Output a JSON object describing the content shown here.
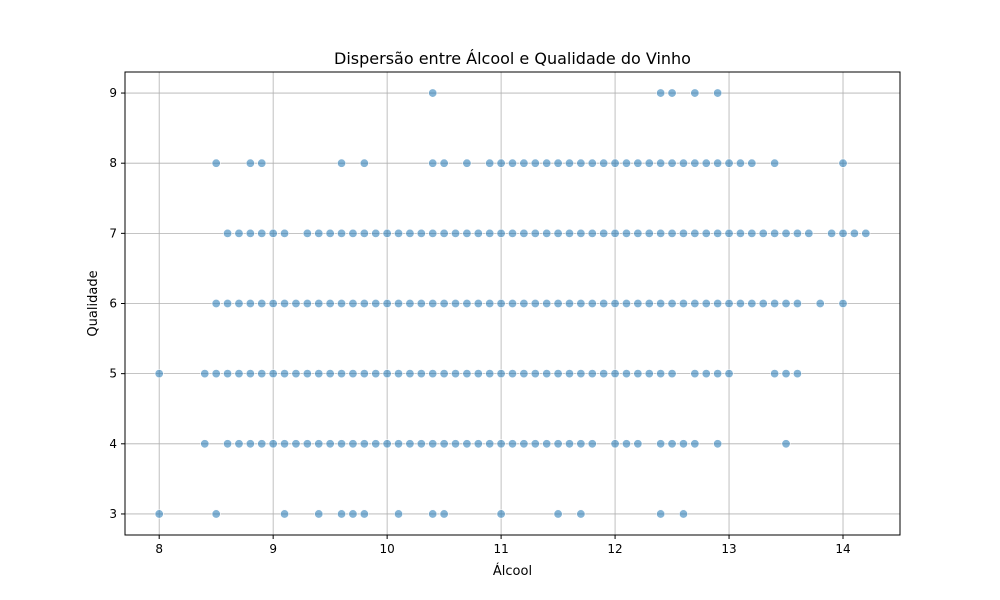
{
  "chart_data": {
    "type": "scatter",
    "title": "Dispersão entre Álcool e Qualidade do Vinho",
    "xlabel": "Álcool",
    "ylabel": "Qualidade",
    "xlim": [
      7.7,
      14.5
    ],
    "ylim": [
      2.7,
      9.3
    ],
    "xticks": [
      8,
      9,
      10,
      11,
      12,
      13,
      14
    ],
    "yticks": [
      3,
      4,
      5,
      6,
      7,
      8,
      9
    ],
    "grid": true,
    "color": "#1f77b4",
    "points_by_quality": {
      "3": [
        8.0,
        8.5,
        9.1,
        9.4,
        9.6,
        9.7,
        9.8,
        10.1,
        10.4,
        10.5,
        11.0,
        11.5,
        11.7,
        12.4,
        12.6
      ],
      "4": [
        8.4,
        8.6,
        8.7,
        8.8,
        8.9,
        9.0,
        9.1,
        9.2,
        9.3,
        9.4,
        9.5,
        9.6,
        9.7,
        9.8,
        9.9,
        10.0,
        10.1,
        10.2,
        10.3,
        10.4,
        10.5,
        10.6,
        10.7,
        10.8,
        10.9,
        11.0,
        11.1,
        11.2,
        11.3,
        11.4,
        11.5,
        11.6,
        11.7,
        11.8,
        12.0,
        12.1,
        12.2,
        12.4,
        12.5,
        12.6,
        12.7,
        12.9,
        13.5
      ],
      "5": [
        8.0,
        8.4,
        8.5,
        8.6,
        8.7,
        8.8,
        8.9,
        9.0,
        9.1,
        9.2,
        9.3,
        9.4,
        9.5,
        9.6,
        9.7,
        9.8,
        9.9,
        10.0,
        10.1,
        10.2,
        10.3,
        10.4,
        10.5,
        10.6,
        10.7,
        10.8,
        10.9,
        11.0,
        11.1,
        11.2,
        11.3,
        11.4,
        11.5,
        11.6,
        11.7,
        11.8,
        11.9,
        12.0,
        12.1,
        12.2,
        12.3,
        12.4,
        12.5,
        12.7,
        12.8,
        12.9,
        13.0,
        13.4,
        13.5,
        13.6
      ],
      "6": [
        8.5,
        8.6,
        8.7,
        8.8,
        8.9,
        9.0,
        9.1,
        9.2,
        9.3,
        9.4,
        9.5,
        9.6,
        9.7,
        9.8,
        9.9,
        10.0,
        10.1,
        10.2,
        10.3,
        10.4,
        10.5,
        10.6,
        10.7,
        10.8,
        10.9,
        11.0,
        11.1,
        11.2,
        11.3,
        11.4,
        11.5,
        11.6,
        11.7,
        11.8,
        11.9,
        12.0,
        12.1,
        12.2,
        12.3,
        12.4,
        12.5,
        12.6,
        12.7,
        12.8,
        12.9,
        13.0,
        13.1,
        13.2,
        13.3,
        13.4,
        13.5,
        13.6,
        13.8,
        14.0
      ],
      "7": [
        8.6,
        8.7,
        8.8,
        8.9,
        9.0,
        9.1,
        9.3,
        9.4,
        9.5,
        9.6,
        9.7,
        9.8,
        9.9,
        10.0,
        10.1,
        10.2,
        10.3,
        10.4,
        10.5,
        10.6,
        10.7,
        10.8,
        10.9,
        11.0,
        11.1,
        11.2,
        11.3,
        11.4,
        11.5,
        11.6,
        11.7,
        11.8,
        11.9,
        12.0,
        12.1,
        12.2,
        12.3,
        12.4,
        12.5,
        12.6,
        12.7,
        12.8,
        12.9,
        13.0,
        13.1,
        13.2,
        13.3,
        13.4,
        13.5,
        13.6,
        13.7,
        13.9,
        14.0,
        14.1,
        14.2
      ],
      "8": [
        8.5,
        8.8,
        8.9,
        9.6,
        9.8,
        10.4,
        10.5,
        10.7,
        10.9,
        11.0,
        11.1,
        11.2,
        11.3,
        11.4,
        11.5,
        11.6,
        11.7,
        11.8,
        11.9,
        12.0,
        12.1,
        12.2,
        12.3,
        12.4,
        12.5,
        12.6,
        12.7,
        12.8,
        12.9,
        13.0,
        13.1,
        13.2,
        13.4,
        14.0
      ],
      "9": [
        10.4,
        12.4,
        12.5,
        12.7,
        12.9
      ]
    }
  }
}
